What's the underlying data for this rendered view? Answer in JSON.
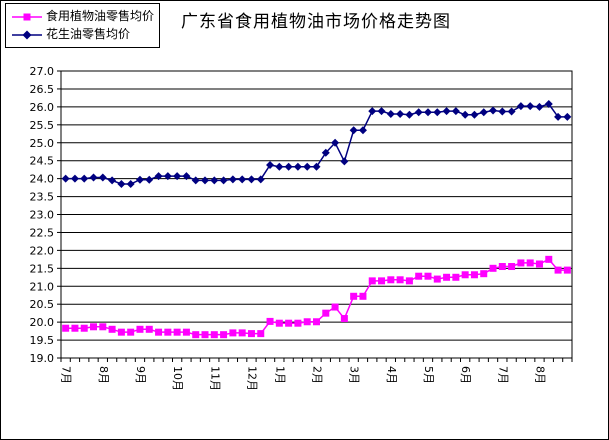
{
  "chart_data": {
    "type": "line",
    "title": "广东省食用植物油市场价格走势图",
    "xlabel": "",
    "ylabel": "",
    "ylim": [
      19.0,
      27.0
    ],
    "yticks": [
      "27.0",
      "26.5",
      "26.0",
      "25.5",
      "25.0",
      "24.5",
      "24.0",
      "23.5",
      "23.0",
      "22.5",
      "22.0",
      "21.5",
      "21.0",
      "20.5",
      "20.0",
      "19.5",
      "19.0"
    ],
    "x_month_labels": [
      {
        "label": "7月",
        "index": 0
      },
      {
        "label": "8月",
        "index": 4
      },
      {
        "label": "9月",
        "index": 8
      },
      {
        "label": "10月",
        "index": 12
      },
      {
        "label": "11月",
        "index": 16
      },
      {
        "label": "12月",
        "index": 20
      },
      {
        "label": "1月",
        "index": 23
      },
      {
        "label": "2月",
        "index": 27
      },
      {
        "label": "3月",
        "index": 31
      },
      {
        "label": "4月",
        "index": 35
      },
      {
        "label": "5月",
        "index": 39
      },
      {
        "label": "6月",
        "index": 43
      },
      {
        "label": "7月",
        "index": 47
      },
      {
        "label": "8月",
        "index": 51
      }
    ],
    "grid": "horizontal",
    "legend_position": "top-left",
    "series": [
      {
        "name": "食用植物油零售均价",
        "color": "#ff00ff",
        "marker": "square",
        "values": [
          19.83,
          19.83,
          19.83,
          19.87,
          19.87,
          19.8,
          19.72,
          19.72,
          19.8,
          19.8,
          19.72,
          19.72,
          19.72,
          19.72,
          19.65,
          19.65,
          19.65,
          19.65,
          19.7,
          19.7,
          19.68,
          19.68,
          20.02,
          19.97,
          19.97,
          19.97,
          20.01,
          20.01,
          20.25,
          20.42,
          20.1,
          20.72,
          20.72,
          21.15,
          21.15,
          21.18,
          21.18,
          21.15,
          21.28,
          21.28,
          21.2,
          21.25,
          21.25,
          21.32,
          21.32,
          21.35,
          21.5,
          21.55,
          21.55,
          21.65,
          21.65,
          21.62,
          21.75,
          21.45,
          21.45
        ]
      },
      {
        "name": "花生油零售均价",
        "color": "#000080",
        "marker": "diamond",
        "values": [
          24.0,
          24.0,
          24.0,
          24.03,
          24.03,
          23.95,
          23.85,
          23.85,
          23.97,
          23.97,
          24.07,
          24.07,
          24.07,
          24.07,
          23.95,
          23.95,
          23.95,
          23.95,
          23.98,
          23.98,
          23.98,
          23.98,
          24.38,
          24.33,
          24.33,
          24.33,
          24.33,
          24.33,
          24.72,
          25.0,
          24.48,
          25.35,
          25.35,
          25.88,
          25.88,
          25.8,
          25.8,
          25.78,
          25.85,
          25.85,
          25.85,
          25.88,
          25.88,
          25.78,
          25.78,
          25.85,
          25.9,
          25.87,
          25.87,
          26.02,
          26.02,
          26.0,
          26.08,
          25.72,
          25.72
        ]
      }
    ]
  }
}
